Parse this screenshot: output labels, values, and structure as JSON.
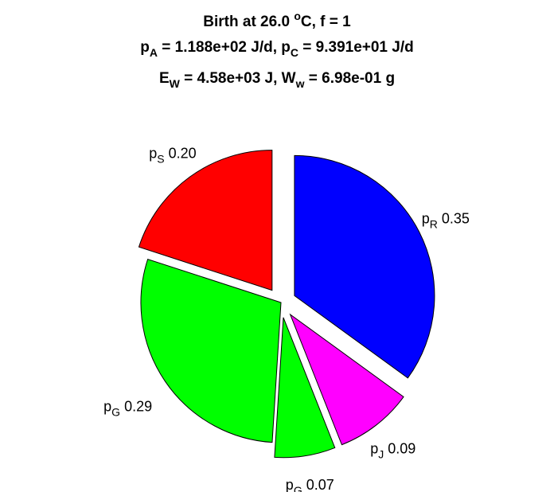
{
  "chart_data": {
    "type": "pie",
    "title_lines": [
      {
        "parts": [
          {
            "t": "Birth at 26.0 "
          },
          {
            "t": "o",
            "sup": true
          },
          {
            "t": "C, f = 1"
          }
        ]
      },
      {
        "parts": [
          {
            "t": "p"
          },
          {
            "t": "A",
            "sub": true
          },
          {
            "t": " = 1.188e+02 J/d, p"
          },
          {
            "t": "C",
            "sub": true
          },
          {
            "t": " = 9.391e+01 J/d"
          }
        ]
      },
      {
        "parts": [
          {
            "t": "E"
          },
          {
            "t": "W",
            "sub": true
          },
          {
            "t": " = 4.58e+03 J, W"
          },
          {
            "t": "w",
            "sub": true
          },
          {
            "t": " = 6.98e-01 g"
          }
        ]
      }
    ],
    "slices": [
      {
        "name": "p",
        "sub": "R",
        "value_label": "0.35",
        "value": 0.35,
        "color": "#0000ff",
        "exploded": true
      },
      {
        "name": "p",
        "sub": "J",
        "value_label": "0.09",
        "value": 0.09,
        "color": "#ff00ff",
        "exploded": true
      },
      {
        "name": "p",
        "sub": "G",
        "value_label": "0.07",
        "value": 0.07,
        "color": "#00ff00",
        "exploded": true
      },
      {
        "name": "p",
        "sub": "G",
        "value_label": "0.29",
        "value": 0.29,
        "color": "#00ff00",
        "exploded": false
      },
      {
        "name": "p",
        "sub": "S",
        "value_label": "0.20",
        "value": 0.2,
        "color": "#ff0000",
        "exploded": true
      }
    ],
    "start_angle_deg": 90,
    "direction": "clockwise"
  }
}
